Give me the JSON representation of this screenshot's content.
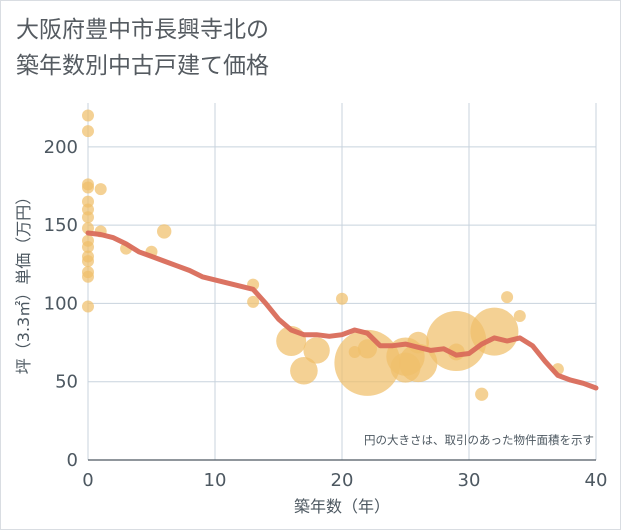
{
  "title_lines": [
    "大阪府豊中市長興寺北の",
    "築年数別中古戸建て価格"
  ],
  "chart_data": {
    "type": "scatter",
    "title": "大阪府豊中市長興寺北の築年数別中古戸建て価格",
    "xlabel": "築年数（年）",
    "ylabel": "坪（3.3㎡）単価（万円）",
    "xlim": [
      0,
      40
    ],
    "ylim": [
      0,
      228
    ],
    "x_ticks": [
      0,
      10,
      20,
      30,
      40
    ],
    "y_ticks": [
      0,
      50,
      100,
      150,
      200
    ],
    "grid": true,
    "note": "円の大きさは、取引のあった物件面積を示す",
    "colors": {
      "bubble": "#f0bf6b",
      "trend": "#d96b5a",
      "grid": "#c8d3dd",
      "axis": "#4d5861"
    },
    "series": [
      {
        "kind": "bubble",
        "points": [
          {
            "x": 0,
            "y": 220,
            "size": 1
          },
          {
            "x": 0,
            "y": 210,
            "size": 1
          },
          {
            "x": 0,
            "y": 176,
            "size": 1
          },
          {
            "x": 0,
            "y": 174,
            "size": 1
          },
          {
            "x": 0,
            "y": 165,
            "size": 1
          },
          {
            "x": 0,
            "y": 160,
            "size": 1
          },
          {
            "x": 0,
            "y": 155,
            "size": 1
          },
          {
            "x": 0,
            "y": 148,
            "size": 1
          },
          {
            "x": 0,
            "y": 140,
            "size": 1
          },
          {
            "x": 0,
            "y": 136,
            "size": 1
          },
          {
            "x": 0,
            "y": 130,
            "size": 1
          },
          {
            "x": 0,
            "y": 127,
            "size": 1
          },
          {
            "x": 0,
            "y": 120,
            "size": 1
          },
          {
            "x": 0,
            "y": 117,
            "size": 1
          },
          {
            "x": 0,
            "y": 98,
            "size": 1
          },
          {
            "x": 1,
            "y": 173,
            "size": 1
          },
          {
            "x": 1,
            "y": 146,
            "size": 1
          },
          {
            "x": 3,
            "y": 135,
            "size": 1
          },
          {
            "x": 5,
            "y": 133,
            "size": 1
          },
          {
            "x": 6,
            "y": 146,
            "size": 1.2
          },
          {
            "x": 13,
            "y": 112,
            "size": 1
          },
          {
            "x": 13,
            "y": 101,
            "size": 1
          },
          {
            "x": 16,
            "y": 76,
            "size": 2.5
          },
          {
            "x": 17,
            "y": 57,
            "size": 2.3
          },
          {
            "x": 18,
            "y": 70,
            "size": 2.2
          },
          {
            "x": 20,
            "y": 103,
            "size": 1
          },
          {
            "x": 21,
            "y": 69,
            "size": 1
          },
          {
            "x": 22,
            "y": 71,
            "size": 1.6
          },
          {
            "x": 22,
            "y": 62,
            "size": 5.5
          },
          {
            "x": 25,
            "y": 66,
            "size": 3.2
          },
          {
            "x": 25,
            "y": 59,
            "size": 2.5
          },
          {
            "x": 26,
            "y": 62,
            "size": 3.2
          },
          {
            "x": 26,
            "y": 75,
            "size": 1.8
          },
          {
            "x": 29,
            "y": 76,
            "size": 5.0
          },
          {
            "x": 29,
            "y": 69,
            "size": 1.4
          },
          {
            "x": 31,
            "y": 42,
            "size": 1.1
          },
          {
            "x": 32,
            "y": 82,
            "size": 4.0
          },
          {
            "x": 33,
            "y": 104,
            "size": 1
          },
          {
            "x": 34,
            "y": 92,
            "size": 1
          },
          {
            "x": 37,
            "y": 58,
            "size": 1
          }
        ]
      },
      {
        "kind": "trend",
        "x": [
          0,
          1,
          2,
          3,
          4,
          5,
          6,
          7,
          8,
          9,
          10,
          11,
          12,
          13,
          14,
          15,
          16,
          17,
          18,
          19,
          20,
          21,
          22,
          23,
          24,
          25,
          26,
          27,
          28,
          29,
          30,
          31,
          32,
          33,
          34,
          35,
          36,
          37,
          38,
          39,
          40
        ],
        "y": [
          145,
          144,
          142,
          138,
          133,
          130,
          127,
          124,
          121,
          117,
          115,
          113,
          111,
          109,
          100,
          90,
          83,
          80,
          80,
          79,
          80,
          83,
          81,
          73,
          73,
          74,
          72,
          70,
          71,
          67,
          68,
          74,
          78,
          76,
          78,
          73,
          63,
          54,
          51,
          49,
          46
        ]
      }
    ]
  }
}
